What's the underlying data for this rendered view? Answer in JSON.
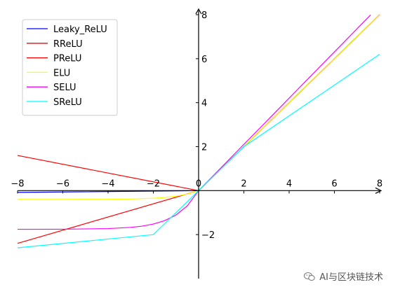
{
  "chart_data": {
    "type": "line",
    "title": "",
    "xlabel": "",
    "ylabel": "",
    "xlim": [
      -8,
      8
    ],
    "ylim": [
      -4,
      8
    ],
    "xticks": [
      -8,
      -6,
      -4,
      -2,
      0,
      2,
      4,
      6,
      8
    ],
    "yticks": [
      -2,
      2,
      4,
      6,
      8
    ],
    "tick_labels": {
      "x": [
        "−8",
        "−6",
        "−4",
        "−2",
        "0",
        "2",
        "4",
        "6",
        "8"
      ],
      "y": [
        "−2",
        "2",
        "4",
        "6",
        "8"
      ]
    },
    "grid": false,
    "legend_position": "top-left",
    "series": [
      {
        "name": "Leaky_ReLU",
        "color": "#0000ff",
        "x": [
          -8,
          0,
          8
        ],
        "y": [
          -0.08,
          0,
          8
        ]
      },
      {
        "name": "RReLU",
        "color": "#ff0000",
        "x": [
          -8,
          0,
          8
        ],
        "y": [
          1.6,
          0,
          8
        ]
      },
      {
        "name": "PReLU",
        "color": "#ff0000",
        "x": [
          -8,
          0,
          8
        ],
        "y": [
          -2.4,
          0,
          8
        ]
      },
      {
        "name": "ELU",
        "color": "#ffff00",
        "x": [
          -8,
          -6,
          -4,
          -3,
          -2,
          -1.5,
          -1,
          -0.5,
          0,
          8
        ],
        "y": [
          -0.4,
          -0.399,
          -0.393,
          -0.38,
          -0.346,
          -0.311,
          -0.253,
          -0.157,
          0,
          8
        ]
      },
      {
        "name": "SELU",
        "color": "#ff00ff",
        "x": [
          -8,
          -6,
          -4,
          -3,
          -2.5,
          -2,
          -1.5,
          -1,
          -0.5,
          0,
          7.6
        ],
        "y": [
          -1.758,
          -1.754,
          -1.726,
          -1.67,
          -1.614,
          -1.52,
          -1.365,
          -1.111,
          -0.692,
          0,
          7.99
        ]
      },
      {
        "name": "SReLU",
        "color": "#00ffff",
        "x": [
          -8,
          -2,
          0,
          2,
          8
        ],
        "y": [
          -2.6,
          -2,
          0,
          2,
          6.2
        ]
      }
    ]
  },
  "watermark": {
    "text": "AI与区块链技术",
    "icon": "wechat-icon"
  }
}
